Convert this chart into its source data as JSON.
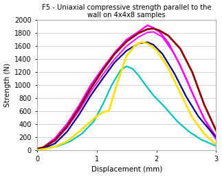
{
  "title_line1": "F5 - Uniaxial compressive strength parallel to the",
  "title_line2": "wall on 4x4x8 samples",
  "xlabel": "Displacement (mm)",
  "ylabel": "Strength (N)",
  "xlim": [
    0,
    3
  ],
  "ylim": [
    0,
    2000
  ],
  "yticks": [
    0,
    200,
    400,
    600,
    800,
    1000,
    1200,
    1400,
    1600,
    1800,
    2000
  ],
  "xticks": [
    0,
    1,
    2,
    3
  ],
  "curves": [
    {
      "color": "#FF00FF",
      "lw": 1.8,
      "x": [
        0,
        0.1,
        0.3,
        0.5,
        0.7,
        0.9,
        1.1,
        1.3,
        1.5,
        1.7,
        1.85,
        1.95,
        2.05,
        2.2,
        2.4,
        2.6,
        2.8,
        3.0
      ],
      "y": [
        0,
        40,
        180,
        400,
        680,
        1000,
        1260,
        1500,
        1700,
        1820,
        1920,
        1880,
        1820,
        1650,
        1300,
        880,
        480,
        200
      ]
    },
    {
      "color": "#FF00FF",
      "lw": 1.4,
      "x": [
        0,
        0.1,
        0.3,
        0.5,
        0.7,
        0.9,
        1.1,
        1.3,
        1.5,
        1.7,
        1.85,
        1.95,
        2.1,
        2.3,
        2.5,
        2.7,
        2.9,
        3.0
      ],
      "y": [
        0,
        30,
        140,
        340,
        600,
        900,
        1160,
        1400,
        1600,
        1740,
        1810,
        1820,
        1740,
        1480,
        1100,
        680,
        300,
        160
      ]
    },
    {
      "color": "#8B0000",
      "lw": 2.0,
      "x": [
        0,
        0.1,
        0.3,
        0.5,
        0.7,
        0.9,
        1.1,
        1.3,
        1.5,
        1.7,
        1.85,
        1.95,
        2.05,
        2.2,
        2.4,
        2.6,
        2.8,
        3.0
      ],
      "y": [
        20,
        40,
        150,
        360,
        640,
        950,
        1230,
        1480,
        1670,
        1800,
        1860,
        1870,
        1840,
        1760,
        1560,
        1200,
        700,
        300
      ]
    },
    {
      "color": "#000080",
      "lw": 1.6,
      "x": [
        0,
        0.1,
        0.3,
        0.5,
        0.7,
        0.9,
        1.1,
        1.3,
        1.5,
        1.7,
        1.85,
        1.95,
        2.1,
        2.3,
        2.5,
        2.7,
        2.9,
        3.0
      ],
      "y": [
        0,
        20,
        100,
        280,
        540,
        840,
        1100,
        1350,
        1530,
        1640,
        1660,
        1620,
        1480,
        1180,
        820,
        520,
        300,
        200
      ]
    },
    {
      "color": "#00BFBF",
      "lw": 1.6,
      "x": [
        0,
        0.15,
        0.35,
        0.55,
        0.75,
        0.95,
        1.1,
        1.25,
        1.4,
        1.5,
        1.6,
        1.7,
        1.8,
        1.95,
        2.15,
        2.35,
        2.55,
        2.75,
        3.0
      ],
      "y": [
        0,
        20,
        60,
        130,
        250,
        440,
        700,
        1000,
        1230,
        1290,
        1250,
        1150,
        1020,
        840,
        650,
        440,
        280,
        160,
        60
      ]
    },
    {
      "color": "#FFE000",
      "lw": 2.0,
      "x": [
        0,
        0.1,
        0.3,
        0.5,
        0.7,
        0.85,
        1.0,
        1.1,
        1.2,
        1.35,
        1.5,
        1.65,
        1.75,
        1.85,
        2.0,
        2.2,
        2.4,
        2.6,
        2.8,
        3.0
      ],
      "y": [
        0,
        10,
        50,
        130,
        280,
        400,
        520,
        580,
        600,
        1050,
        1450,
        1620,
        1660,
        1640,
        1540,
        1260,
        880,
        500,
        250,
        80
      ]
    }
  ],
  "background_color": "#FFFFFF",
  "grid_color": "#CCCCCC",
  "title_fontsize": 7.2,
  "label_fontsize": 7.5,
  "tick_fontsize": 7.0
}
